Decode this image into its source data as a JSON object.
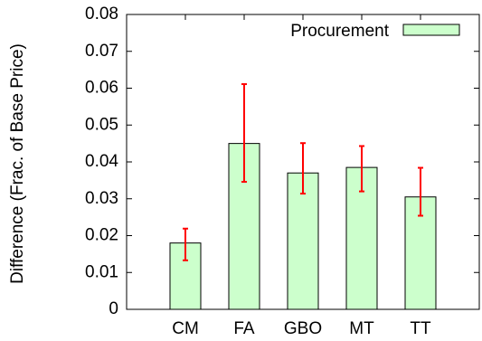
{
  "chart_data": {
    "type": "bar",
    "categories": [
      "CM",
      "FA",
      "GBO",
      "MT",
      "TT"
    ],
    "series": [
      {
        "name": "Procurement",
        "values": [
          0.018,
          0.045,
          0.037,
          0.0385,
          0.0305
        ],
        "error_low": [
          0.0133,
          0.0346,
          0.0314,
          0.032,
          0.0254
        ],
        "error_high": [
          0.0219,
          0.0611,
          0.0451,
          0.0443,
          0.0384
        ],
        "color": "#ccffcc",
        "error_color": "#ff0000"
      }
    ],
    "ylabel": "Difference (Frac. of Base Price)",
    "xlabel": "",
    "ylim": [
      0,
      0.08
    ],
    "yticks": [
      "0",
      "0.01",
      "0.02",
      "0.03",
      "0.04",
      "0.05",
      "0.06",
      "0.07",
      "0.08"
    ],
    "legend_position": "top-right",
    "grid": false
  }
}
